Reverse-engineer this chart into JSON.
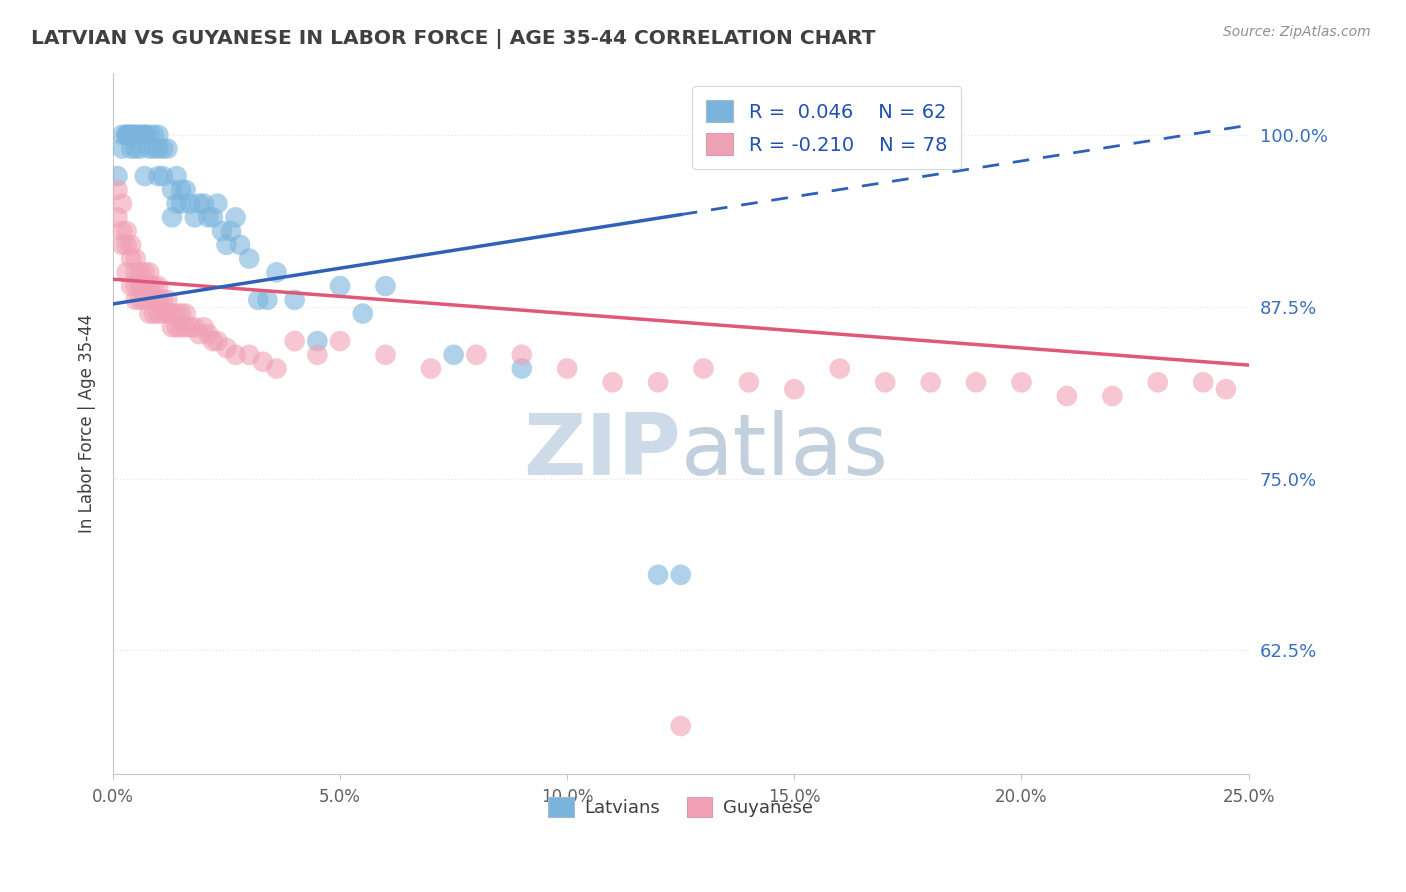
{
  "title": "LATVIAN VS GUYANESE IN LABOR FORCE | AGE 35-44 CORRELATION CHART",
  "source_text": "Source: ZipAtlas.com",
  "ylabel": "In Labor Force | Age 35-44",
  "xlim": [
    0.0,
    0.25
  ],
  "ylim": [
    0.535,
    1.045
  ],
  "xticklabels": [
    "0.0%",
    "5.0%",
    "10.0%",
    "15.0%",
    "20.0%",
    "25.0%"
  ],
  "xtick_positions": [
    0.0,
    0.05,
    0.1,
    0.15,
    0.2,
    0.25
  ],
  "yticks_right": [
    1.0,
    0.875,
    0.75,
    0.625
  ],
  "yticklabels_right": [
    "100.0%",
    "87.5%",
    "75.0%",
    "62.5%"
  ],
  "blue_color": "#7ab4dc",
  "pink_color": "#f0a0b5",
  "trend_blue": "#3060b8",
  "trend_pink": "#e05878",
  "legend_text_color": "#2050b0",
  "title_color": "#404040",
  "source_color": "#909090",
  "grid_color": "#e0e8f0",
  "watermark_color": "#ccd8e8",
  "latvian_x": [
    0.001,
    0.002,
    0.002,
    0.003,
    0.003,
    0.003,
    0.004,
    0.004,
    0.004,
    0.004,
    0.005,
    0.005,
    0.005,
    0.006,
    0.006,
    0.006,
    0.007,
    0.007,
    0.007,
    0.007,
    0.008,
    0.008,
    0.009,
    0.009,
    0.01,
    0.01,
    0.01,
    0.011,
    0.011,
    0.012,
    0.013,
    0.013,
    0.014,
    0.014,
    0.015,
    0.015,
    0.016,
    0.017,
    0.018,
    0.019,
    0.02,
    0.021,
    0.022,
    0.023,
    0.024,
    0.025,
    0.026,
    0.027,
    0.028,
    0.03,
    0.032,
    0.034,
    0.036,
    0.04,
    0.045,
    0.05,
    0.055,
    0.06,
    0.075,
    0.09,
    0.12,
    0.125
  ],
  "latvian_y": [
    0.97,
    0.99,
    1.0,
    1.0,
    1.0,
    1.0,
    1.0,
    1.0,
    1.0,
    0.99,
    1.0,
    1.0,
    0.99,
    1.0,
    1.0,
    0.99,
    1.0,
    1.0,
    1.0,
    0.97,
    1.0,
    0.99,
    0.99,
    1.0,
    1.0,
    0.99,
    0.97,
    0.99,
    0.97,
    0.99,
    0.94,
    0.96,
    0.95,
    0.97,
    0.95,
    0.96,
    0.96,
    0.95,
    0.94,
    0.95,
    0.95,
    0.94,
    0.94,
    0.95,
    0.93,
    0.92,
    0.93,
    0.94,
    0.92,
    0.91,
    0.88,
    0.88,
    0.9,
    0.88,
    0.85,
    0.89,
    0.87,
    0.89,
    0.84,
    0.83,
    0.68,
    0.68
  ],
  "guyanese_x": [
    0.001,
    0.001,
    0.002,
    0.002,
    0.002,
    0.003,
    0.003,
    0.003,
    0.004,
    0.004,
    0.004,
    0.005,
    0.005,
    0.005,
    0.005,
    0.006,
    0.006,
    0.006,
    0.007,
    0.007,
    0.007,
    0.008,
    0.008,
    0.008,
    0.009,
    0.009,
    0.009,
    0.01,
    0.01,
    0.01,
    0.011,
    0.011,
    0.012,
    0.012,
    0.013,
    0.013,
    0.014,
    0.014,
    0.015,
    0.015,
    0.016,
    0.016,
    0.017,
    0.018,
    0.019,
    0.02,
    0.021,
    0.022,
    0.023,
    0.025,
    0.027,
    0.03,
    0.033,
    0.036,
    0.04,
    0.045,
    0.05,
    0.06,
    0.07,
    0.08,
    0.09,
    0.1,
    0.11,
    0.12,
    0.13,
    0.14,
    0.15,
    0.16,
    0.17,
    0.18,
    0.19,
    0.2,
    0.21,
    0.22,
    0.23,
    0.24,
    0.245,
    0.125
  ],
  "guyanese_y": [
    0.96,
    0.94,
    0.95,
    0.93,
    0.92,
    0.93,
    0.92,
    0.9,
    0.92,
    0.91,
    0.89,
    0.91,
    0.9,
    0.89,
    0.88,
    0.9,
    0.89,
    0.88,
    0.9,
    0.89,
    0.88,
    0.9,
    0.89,
    0.87,
    0.89,
    0.88,
    0.87,
    0.89,
    0.88,
    0.87,
    0.88,
    0.87,
    0.88,
    0.87,
    0.87,
    0.86,
    0.87,
    0.86,
    0.87,
    0.86,
    0.87,
    0.86,
    0.86,
    0.86,
    0.855,
    0.86,
    0.855,
    0.85,
    0.85,
    0.845,
    0.84,
    0.84,
    0.835,
    0.83,
    0.85,
    0.84,
    0.85,
    0.84,
    0.83,
    0.84,
    0.84,
    0.83,
    0.82,
    0.82,
    0.83,
    0.82,
    0.815,
    0.83,
    0.82,
    0.82,
    0.82,
    0.82,
    0.81,
    0.81,
    0.82,
    0.82,
    0.815,
    0.57
  ],
  "blue_trend_x0": 0.0,
  "blue_trend_x_solid_end": 0.125,
  "blue_trend_x_dash_end": 0.25,
  "blue_trend_y0": 0.877,
  "blue_trend_slope": 0.52,
  "pink_trend_x0": 0.0,
  "pink_trend_x_end": 0.25,
  "pink_trend_y0": 0.895,
  "pink_trend_slope": -0.25
}
